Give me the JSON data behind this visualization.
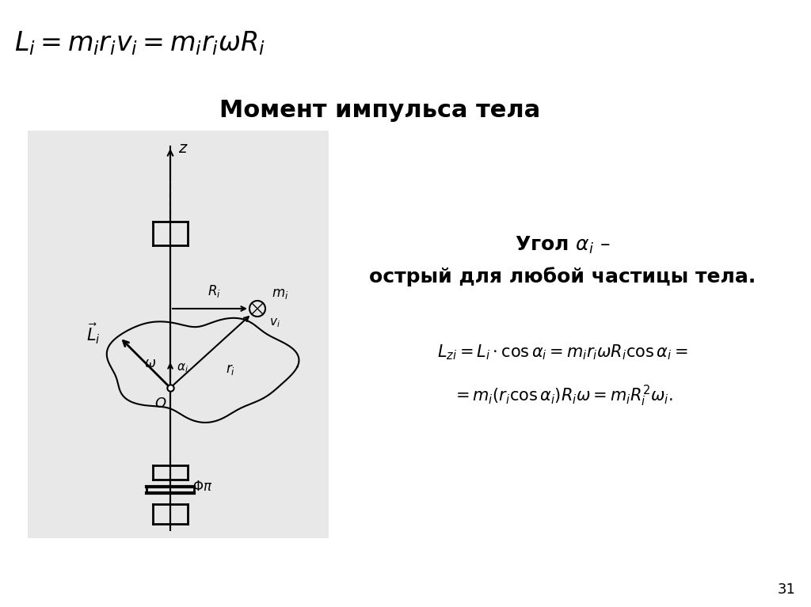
{
  "bg_color": "#ffffff",
  "top_formula": "$L_i = m_i r_i v_i = m_i r_i \\omega R_i$",
  "title": "Момент импульса тела",
  "angle_text_line1": "Угол $\\alpha_i$ –",
  "angle_text_line2": "острый для любой частицы тела.",
  "formula_line1": "$L_{zi} = L_i \\cdot \\cos\\alpha_i = m_i r_i \\omega R_i \\cos\\alpha_i =$",
  "formula_line2": "$= m_i\\left(r_i \\cos\\alpha_i\\right)R_i\\omega = m_i R_i^2 \\omega_i.$",
  "page_number": "31",
  "diagram_bg": "#e8e8e8"
}
